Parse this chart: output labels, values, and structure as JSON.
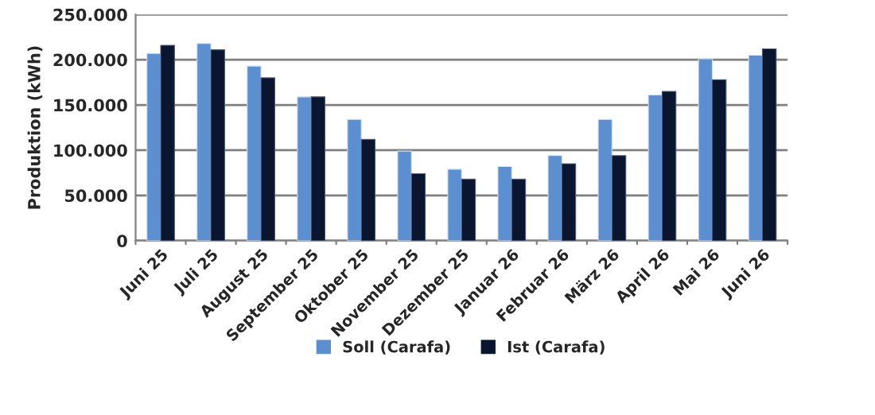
{
  "chart_data": {
    "type": "bar",
    "ylabel": "Produktion (kWh)",
    "categories": [
      "Juni 25",
      "Juli 25",
      "August 25",
      "September 25",
      "Oktober 25",
      "November 25",
      "Dezember 25",
      "Januar 26",
      "Februar 26",
      "März 26",
      "April 26",
      "Mai 26",
      "Juni 26"
    ],
    "series": [
      {
        "name": "Soll (Carafa)",
        "color": "#5b8fd0",
        "values": [
          207000,
          218000,
          193000,
          159000,
          134000,
          99000,
          79000,
          82000,
          94000,
          134000,
          161000,
          201000,
          205000
        ]
      },
      {
        "name": "Ist (Carafa)",
        "color": "#0a1530",
        "values": [
          216000,
          211000,
          180000,
          159000,
          112000,
          74000,
          68000,
          68000,
          85000,
          94000,
          165000,
          178000,
          212000
        ]
      }
    ],
    "ylim": [
      0,
      250000
    ],
    "yticks": [
      {
        "value": 0,
        "label": "0"
      },
      {
        "value": 50000,
        "label": "50.000"
      },
      {
        "value": 100000,
        "label": "100.000"
      },
      {
        "value": 150000,
        "label": "150.000"
      },
      {
        "value": 200000,
        "label": "200.000"
      },
      {
        "value": 250000,
        "label": "250.000"
      }
    ],
    "grid": "y",
    "legend": "bottom"
  }
}
